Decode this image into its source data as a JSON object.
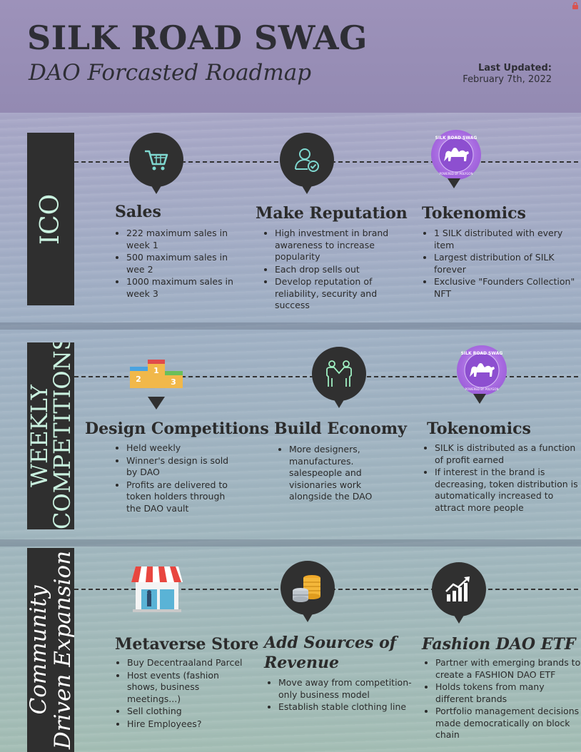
{
  "header": {
    "title": "SILK ROAD SWAG",
    "subtitle": "DAO Forcasted Roadmap",
    "updated_label": "Last Updated:",
    "updated_date": "February  7th, 2022"
  },
  "colors": {
    "bar": "#2f2f2f",
    "bar_text": "#c9f1df",
    "pin": "#303030",
    "icon_mint": "#7fd8d0"
  },
  "sections": [
    {
      "label": "ICO",
      "cards": [
        {
          "icon": "shopping-cart-icon",
          "title": "Sales",
          "bullets": [
            "222 maximum sales in week 1",
            "500 maximum sales in wee 2",
            "1000 maximum sales in week 3"
          ]
        },
        {
          "icon": "user-check-icon",
          "title": "Make Reputation",
          "bullets": [
            "High investment in brand awareness to increase popularity",
            "Each drop sells out",
            "Develop reputation of reliability, security and success"
          ]
        },
        {
          "icon": "silk-road-swag-logo-icon",
          "title": "Tokenomics",
          "bullets": [
            "1 SILK distributed with every item",
            "Largest distribution of SILK forever",
            "Exclusive \"Founders Collection\" NFT"
          ]
        }
      ]
    },
    {
      "label": "WEEKLY COMPETITIONS",
      "cards": [
        {
          "icon": "podium-icon",
          "title": "Design Competitions",
          "bullets": [
            "Held weekly",
            "Winner's design is sold by DAO",
            "Profits are delivered to token holders through the DAO vault"
          ]
        },
        {
          "icon": "handshake-people-icon",
          "title": "Build Economy",
          "bullets": [
            "More designers, manufactures. salespeople and visionaries work alongside the DAO"
          ]
        },
        {
          "icon": "silk-road-swag-logo-icon",
          "title": "Tokenomics",
          "bullets": [
            "SILK is distributed as a function of profit earned",
            "If interest in the brand is decreasing, token distribution is automatically increased to attract more people"
          ]
        }
      ]
    },
    {
      "label_line1": "Community",
      "label_line2": "Driven Expansion",
      "cards": [
        {
          "icon": "storefront-icon",
          "title": "Metaverse Store",
          "bullets": [
            "Buy Decentraaland Parcel",
            "Host events (fashion shows, business meetings...)",
            "Sell clothing",
            "Hire Employees?"
          ]
        },
        {
          "icon": "coin-stack-icon",
          "title_line1": "Add Sources of",
          "title_line2": "Revenue",
          "bullets": [
            "Move away from competition-only business model",
            "Establish stable clothing line"
          ]
        },
        {
          "icon": "growth-chart-icon",
          "title": "Fashion DAO ETF",
          "bullets": [
            "Partner with emerging brands to create a FASHION DAO ETF",
            "Holds tokens from many different brands",
            "Portfolio management decisions made democratically on block chain"
          ]
        }
      ]
    }
  ],
  "logo": {
    "ring_top": "SILK ROAD SWAG",
    "ring_bottom": "POWERED BY POLYGON"
  },
  "podium": {
    "first": "1",
    "second": "2",
    "third": "3"
  }
}
